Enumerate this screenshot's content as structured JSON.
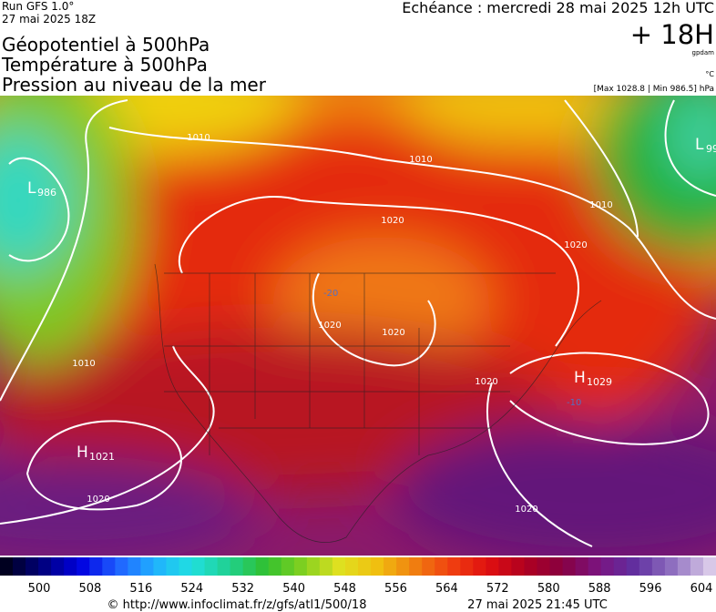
{
  "header": {
    "run": "Run GFS 1.0°",
    "date": "27 mai 2025 18Z",
    "titles": [
      "Géopotentiel à 500hPa",
      "Température à 500hPa",
      "Pression au niveau de la mer"
    ],
    "echeance": "Echéance : mercredi 28 mai 2025 12h UTC",
    "lead": "+ 18H",
    "unit_geo": "gpdam",
    "unit_temp": "°C",
    "range": "[Max 1028.8 | Min 986.5] hPa"
  },
  "map": {
    "pressure_centers": [
      {
        "type": "L",
        "value": "986"
      },
      {
        "type": "H",
        "value": "1021"
      },
      {
        "type": "H",
        "value": "1029"
      },
      {
        "type": "L",
        "value": "99"
      }
    ],
    "isobar_labels": [
      "1010",
      "1010",
      "1020",
      "1020",
      "1020",
      "1010",
      "1020",
      "1020",
      "1010",
      "1020",
      "1020"
    ],
    "temperature_labels": [
      "-20",
      "-10"
    ]
  },
  "colorbar": {
    "labels": [
      500,
      508,
      516,
      524,
      532,
      540,
      548,
      556,
      564,
      572,
      580,
      588,
      596,
      604
    ]
  },
  "footer": {
    "url": "© http://www.infoclimat.fr/z/gfs/atl1/500/18",
    "timestamp": "27 mai 2025 21:45 UTC"
  }
}
